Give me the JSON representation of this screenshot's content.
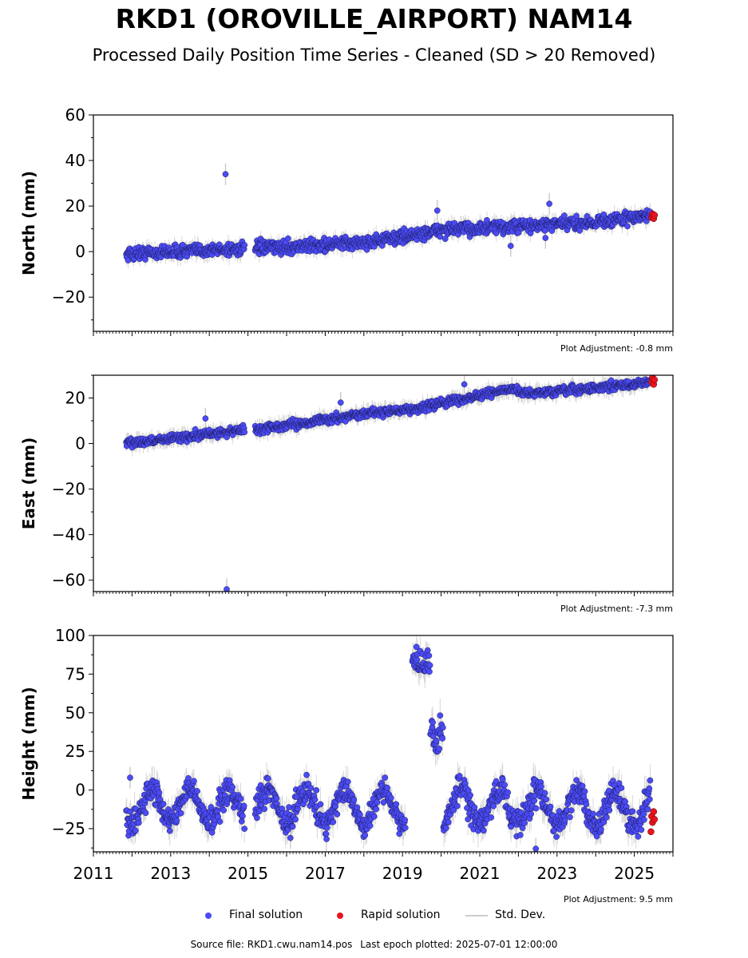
{
  "title": "RKD1 (OROVILLE_AIRPORT) NAM14",
  "subtitle": "Processed Daily Position Time Series - Cleaned (SD > 20 Removed)",
  "footer": {
    "source_file": "Source file: RKD1.cwu.nam14.pos",
    "last_epoch": "Last epoch plotted: 2025-07-01 12:00:00"
  },
  "legend": {
    "final": "Final solution",
    "rapid": "Rapid solution",
    "std": "Std. Dev."
  },
  "colors": {
    "final": "#4b4bf5",
    "rapid": "#e8141e",
    "std": "#c8c8c8"
  },
  "chart_data": [
    {
      "type": "scatter",
      "ylabel": "North (mm)",
      "xlim": [
        2011,
        2026
      ],
      "ylim": [
        -35,
        60
      ],
      "yticks": [
        -20,
        0,
        20,
        40,
        60
      ],
      "ytick_labels": [
        "−20",
        "0",
        "20",
        "40",
        "60"
      ],
      "adjustment": "Plot Adjustment: -0.8 mm",
      "trend": [
        [
          2011.85,
          -1
        ],
        [
          2015.0,
          1.5
        ],
        [
          2016.0,
          2
        ],
        [
          2018.0,
          4
        ],
        [
          2019.4,
          7.5
        ],
        [
          2020.0,
          9.5
        ],
        [
          2022.0,
          11
        ],
        [
          2024.0,
          13
        ],
        [
          2025.5,
          16
        ]
      ],
      "noise": 2.0,
      "outliers": [
        [
          2014.42,
          34
        ],
        [
          2019.9,
          18
        ],
        [
          2021.8,
          2.5
        ],
        [
          2022.8,
          21
        ],
        [
          2022.7,
          6
        ]
      ],
      "rapid": [
        [
          2025.45,
          15
        ],
        [
          2025.47,
          16.5
        ],
        [
          2025.5,
          14.5
        ],
        [
          2025.52,
          16
        ]
      ]
    },
    {
      "type": "scatter",
      "ylabel": "East (mm)",
      "xlim": [
        2011,
        2026
      ],
      "ylim": [
        -65,
        30
      ],
      "yticks": [
        -60,
        -40,
        -20,
        0,
        20
      ],
      "ytick_labels": [
        "−60",
        "−40",
        "−20",
        "0",
        "20"
      ],
      "adjustment": "Plot Adjustment: -7.3 mm",
      "trend": [
        [
          2011.85,
          0
        ],
        [
          2014.9,
          6
        ],
        [
          2015.2,
          6
        ],
        [
          2017.0,
          10.5
        ],
        [
          2018.0,
          13
        ],
        [
          2019.3,
          15
        ],
        [
          2020.0,
          18
        ],
        [
          2021.0,
          21
        ],
        [
          2021.8,
          24
        ],
        [
          2022.3,
          22
        ],
        [
          2023.5,
          23.5
        ],
        [
          2025.5,
          27
        ]
      ],
      "noise": 1.3,
      "outliers": [
        [
          2014.45,
          -64
        ],
        [
          2013.9,
          11
        ],
        [
          2017.4,
          18
        ],
        [
          2020.6,
          26
        ]
      ],
      "rapid": [
        [
          2025.45,
          27
        ],
        [
          2025.47,
          29
        ],
        [
          2025.5,
          26
        ],
        [
          2025.52,
          28
        ]
      ]
    },
    {
      "type": "scatter",
      "ylabel": "Height (mm)",
      "xlim": [
        2011,
        2026
      ],
      "ylim": [
        -40,
        100
      ],
      "yticks": [
        -25,
        0,
        25,
        50,
        75,
        100
      ],
      "ytick_labels": [
        "−25",
        "0",
        "25",
        "50",
        "75",
        "100"
      ],
      "xticks": [
        2011,
        2013,
        2015,
        2017,
        2019,
        2021,
        2023,
        2025
      ],
      "xtick_labels": [
        "2011",
        "2013",
        "2015",
        "2017",
        "2019",
        "2021",
        "2023",
        "2025"
      ],
      "adjustment": "Plot Adjustment: 9.5 mm",
      "trend": [
        [
          2011.85,
          -10
        ],
        [
          2025.5,
          -12
        ]
      ],
      "seasonal_amplitude": 11,
      "noise": 6,
      "offsets": [
        {
          "start": 2019.25,
          "end": 2019.75,
          "value": 82,
          "noise": 7
        },
        {
          "start": 2019.72,
          "end": 2020.05,
          "value": 35,
          "noise": 8
        }
      ],
      "outliers": [
        [
          2022.45,
          -38
        ],
        [
          2016.1,
          -31
        ],
        [
          2011.95,
          8
        ]
      ],
      "rapid": [
        [
          2025.45,
          -17
        ],
        [
          2025.47,
          -21
        ],
        [
          2025.5,
          -14
        ],
        [
          2025.52,
          -19
        ],
        [
          2025.43,
          -27
        ]
      ]
    }
  ]
}
